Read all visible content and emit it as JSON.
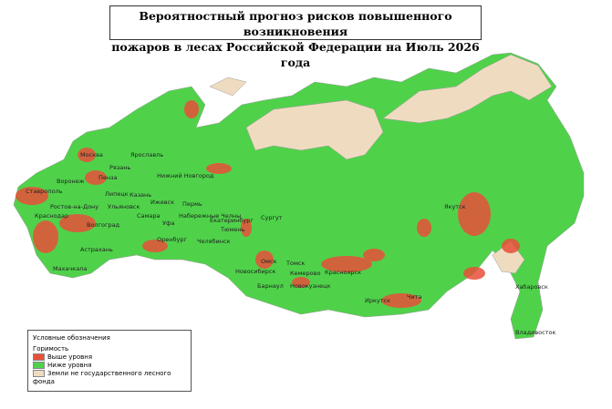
{
  "title": {
    "lines": [
      "Вероятностный прогноз рисков повышенного возникновения",
      "пожаров в лесах Российской Федерации на Июль 2026 года"
    ]
  },
  "cities": [
    "Москва",
    "Ярославль",
    "Рязань",
    "Пенза",
    "Воронеж",
    "Нижний Новгород",
    "Липецк",
    "Казань",
    "Ижевск",
    "Пермь",
    "Ставрополь",
    "Ростов-на-Дону",
    "Ульяновск",
    "Набережные Челны",
    "Краснодар",
    "Самара",
    "Екатеринбург",
    "Волгоград",
    "Уфа",
    "Тюмень",
    "Оренбург",
    "Челябинск",
    "Астрахань",
    "Махачкала",
    "Сургут",
    "Омск",
    "Новосибирск",
    "Томск",
    "Кемерово",
    "Красноярск",
    "Барнаул",
    "Новокузнецк",
    "Иркутск",
    "Чита",
    "Якутск",
    "Хабаровск",
    "Владивосток"
  ],
  "legend": {
    "title": "Условные обозначения",
    "subtitle": "Горимость",
    "items": [
      {
        "label": "Выше уровня",
        "color": "#e8503a"
      },
      {
        "label": "Ниже уровня",
        "color": "#4fd24a"
      },
      {
        "label": "Земли не государственного лесного фонда",
        "color": "#efdcc0"
      }
    ]
  }
}
